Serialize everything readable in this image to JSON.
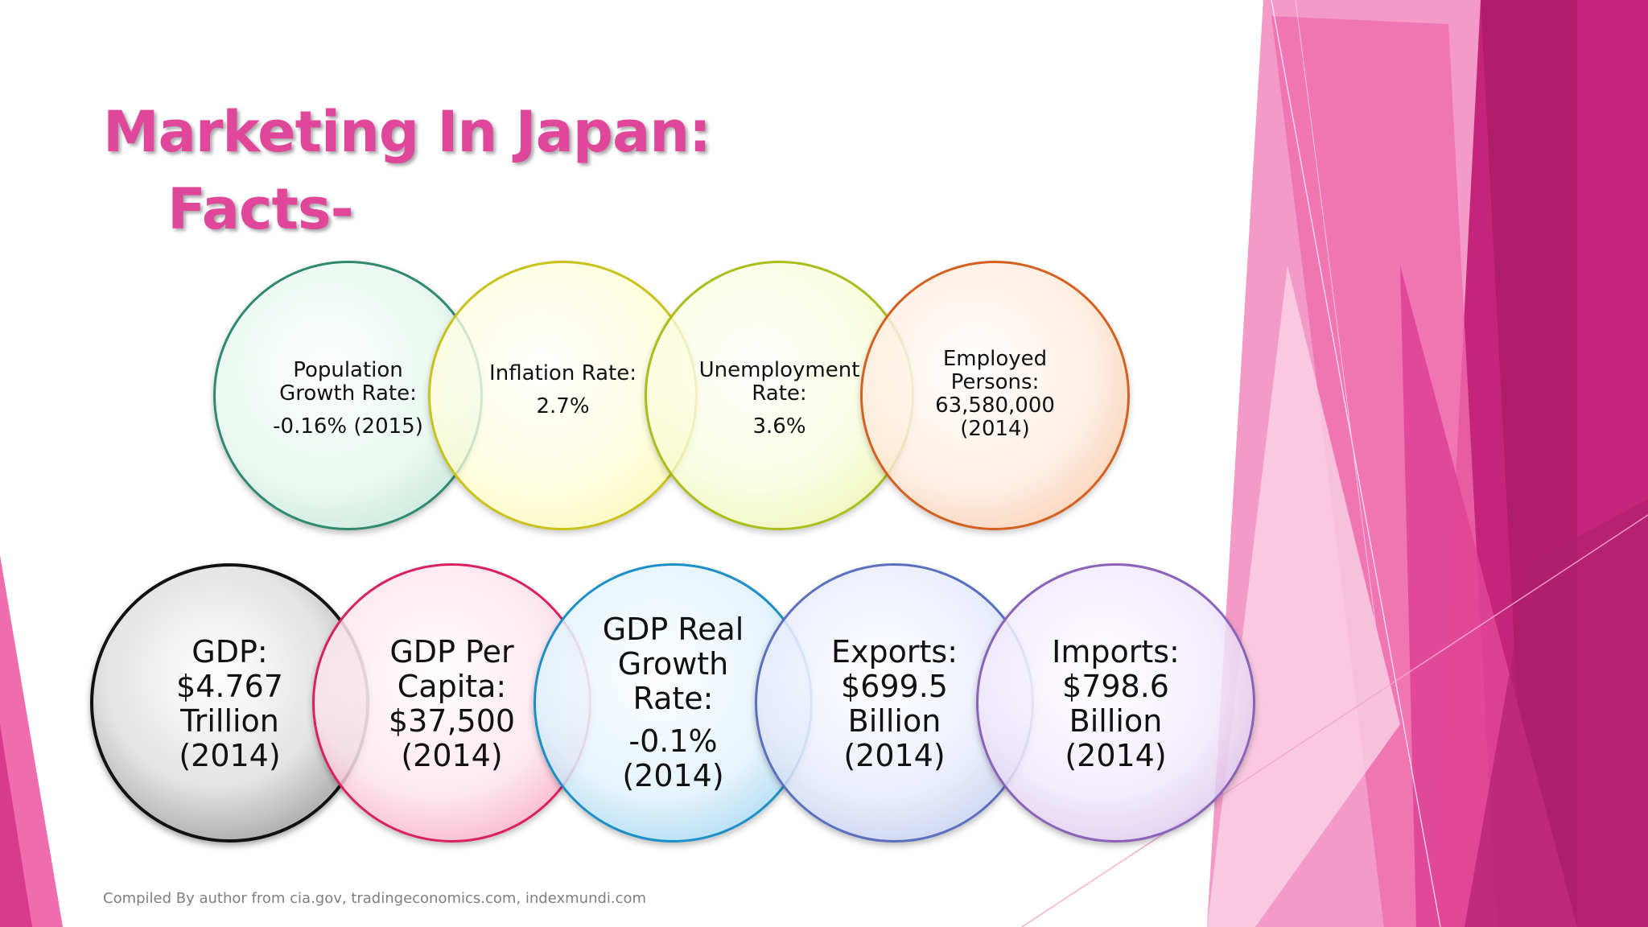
{
  "slide": {
    "title_line1": "Marketing In Japan:",
    "title_line2": "Facts-",
    "source": "Compiled By author from cia.gov, tradingeconomics.com, indexmundi.com"
  },
  "top_circles": [
    {
      "label1": "Population",
      "label2": "Growth Rate:",
      "value": "-0.16% (2015)",
      "color": "#3fae8e"
    },
    {
      "label1": "Inflation Rate:",
      "value": "2.7%",
      "color": "#e3e02a"
    },
    {
      "label1": "Unemployment",
      "label2": "Rate:",
      "value": "3.6%",
      "color": "#c4d826"
    },
    {
      "label1": "Employed",
      "label2": "Persons:",
      "label3": "63,580,000",
      "label4": "(2014)",
      "color": "#ee7a35"
    }
  ],
  "bottom_circles": [
    {
      "label1": "GDP:",
      "label2": "$4.767",
      "label3": "Trillion",
      "label4": "(2014)",
      "color": "#1a1a1a"
    },
    {
      "label1": "GDP Per",
      "label2": "Capita:",
      "label3": "$37,500",
      "label4": "(2014)",
      "color": "#e8326f"
    },
    {
      "label1": "GDP Real",
      "label2": "Growth",
      "label3": "Rate:",
      "value": "-0.1%",
      "value2": "(2014)",
      "color": "#2aa4dc"
    },
    {
      "label1": "Exports:",
      "label2": "$699.5",
      "label3": "Billion",
      "label4": "(2014)",
      "color": "#6f84cf"
    },
    {
      "label1": "Imports:",
      "label2": "$798.6",
      "label3": "Billion",
      "label4": "(2014)",
      "color": "#a27dc9"
    }
  ]
}
